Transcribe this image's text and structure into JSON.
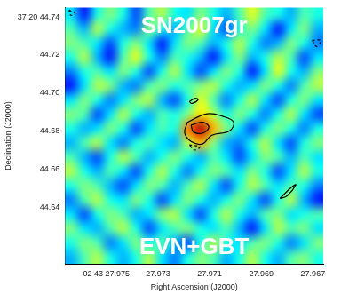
{
  "chart_data": {
    "type": "heatmap",
    "annotations": [
      "SN2007gr",
      "EVN+GBT"
    ],
    "x_label": "Right Ascension (J2000)",
    "y_label": "Declination (J2000)",
    "xlim": [
      27.9766,
      27.9666
    ],
    "xticks": [
      {
        "value": 27.975,
        "label": "02 43 27.975"
      },
      27.973,
      27.971,
      27.969,
      27.967
    ],
    "ylim": [
      44.61,
      44.745
    ],
    "yticks": [
      {
        "value": 44.74,
        "label": "37 20 44.74"
      },
      44.72,
      {
        "value": 44.7,
        "label": "44.70"
      },
      44.68,
      44.66,
      44.64
    ],
    "grid": false,
    "zlim": [
      0,
      1
    ],
    "cells": [
      [
        0.35,
        0.15,
        0.4,
        0.5,
        0.4,
        0.2,
        0.45,
        0.55,
        0.4,
        0.35,
        0.5,
        0.4,
        0.3,
        0.45,
        0.6,
        0.45,
        0.4,
        0.3,
        0.45,
        0.4
      ],
      [
        0.45,
        0.3,
        0.55,
        0.4,
        0.3,
        0.25,
        0.5,
        0.4,
        0.3,
        0.45,
        0.6,
        0.35,
        0.2,
        0.4,
        0.5,
        0.35,
        0.15,
        0.35,
        0.5,
        0.3
      ],
      [
        0.5,
        0.45,
        0.35,
        0.2,
        0.4,
        0.5,
        0.35,
        0.15,
        0.35,
        0.5,
        0.45,
        0.3,
        0.4,
        0.55,
        0.4,
        0.25,
        0.3,
        0.5,
        0.4,
        0.25
      ],
      [
        0.4,
        0.55,
        0.3,
        0.15,
        0.45,
        0.6,
        0.4,
        0.25,
        0.45,
        0.4,
        0.3,
        0.15,
        0.35,
        0.5,
        0.3,
        0.4,
        0.55,
        0.45,
        0.2,
        0.35
      ],
      [
        0.25,
        0.4,
        0.45,
        0.35,
        0.5,
        0.4,
        0.2,
        0.4,
        0.55,
        0.35,
        0.2,
        0.35,
        0.5,
        0.4,
        0.15,
        0.35,
        0.6,
        0.4,
        0.3,
        0.5
      ],
      [
        0.15,
        0.35,
        0.55,
        0.5,
        0.3,
        0.25,
        0.45,
        0.5,
        0.4,
        0.45,
        0.5,
        0.55,
        0.4,
        0.3,
        0.35,
        0.5,
        0.4,
        0.25,
        0.45,
        0.55
      ],
      [
        0.35,
        0.5,
        0.4,
        0.25,
        0.35,
        0.5,
        0.55,
        0.3,
        0.2,
        0.4,
        0.6,
        0.45,
        0.25,
        0.4,
        0.55,
        0.35,
        0.2,
        0.4,
        0.5,
        0.35
      ],
      [
        0.5,
        0.45,
        0.2,
        0.35,
        0.55,
        0.4,
        0.3,
        0.45,
        0.4,
        0.5,
        0.65,
        0.55,
        0.4,
        0.5,
        0.4,
        0.25,
        0.4,
        0.55,
        0.35,
        0.2
      ],
      [
        0.4,
        0.3,
        0.35,
        0.5,
        0.4,
        0.2,
        0.35,
        0.45,
        0.4,
        0.75,
        0.95,
        0.7,
        0.5,
        0.35,
        0.2,
        0.4,
        0.5,
        0.4,
        0.25,
        0.4
      ],
      [
        0.3,
        0.45,
        0.55,
        0.35,
        0.25,
        0.4,
        0.45,
        0.35,
        0.3,
        0.55,
        0.7,
        0.5,
        0.3,
        0.25,
        0.4,
        0.55,
        0.35,
        0.2,
        0.4,
        0.5
      ],
      [
        0.45,
        0.3,
        0.2,
        0.4,
        0.55,
        0.45,
        0.3,
        0.4,
        0.5,
        0.4,
        0.3,
        0.45,
        0.35,
        0.2,
        0.35,
        0.5,
        0.45,
        0.3,
        0.45,
        0.35
      ],
      [
        0.55,
        0.4,
        0.3,
        0.45,
        0.35,
        0.2,
        0.4,
        0.55,
        0.4,
        0.25,
        0.4,
        0.5,
        0.45,
        0.35,
        0.5,
        0.4,
        0.2,
        0.35,
        0.55,
        0.4
      ],
      [
        0.4,
        0.5,
        0.45,
        0.3,
        0.2,
        0.35,
        0.5,
        0.45,
        0.3,
        0.45,
        0.55,
        0.35,
        0.2,
        0.4,
        0.55,
        0.45,
        0.35,
        0.45,
        0.4,
        0.25
      ],
      [
        0.25,
        0.45,
        0.55,
        0.4,
        0.35,
        0.5,
        0.4,
        0.2,
        0.35,
        0.5,
        0.4,
        0.3,
        0.4,
        0.5,
        0.35,
        0.2,
        0.4,
        0.55,
        0.3,
        0.15
      ],
      [
        0.35,
        0.2,
        0.4,
        0.5,
        0.45,
        0.3,
        0.35,
        0.5,
        0.55,
        0.35,
        0.2,
        0.4,
        0.55,
        0.4,
        0.3,
        0.45,
        0.5,
        0.35,
        0.4,
        0.45
      ],
      [
        0.5,
        0.35,
        0.3,
        0.45,
        0.55,
        0.4,
        0.2,
        0.35,
        0.45,
        0.5,
        0.4,
        0.35,
        0.45,
        0.3,
        0.15,
        0.35,
        0.55,
        0.45,
        0.5,
        0.35
      ],
      [
        0.4,
        0.5,
        0.45,
        0.25,
        0.35,
        0.5,
        0.4,
        0.45,
        0.3,
        0.2,
        0.4,
        0.55,
        0.4,
        0.35,
        0.45,
        0.5,
        0.4,
        0.25,
        0.35,
        0.5
      ],
      [
        0.3,
        0.45,
        0.55,
        0.4,
        0.3,
        0.4,
        0.55,
        0.35,
        0.25,
        0.4,
        0.5,
        0.45,
        0.3,
        0.4,
        0.55,
        0.4,
        0.3,
        0.45,
        0.5,
        0.4
      ]
    ],
    "contours": [
      {
        "color": "#000000",
        "line_style": "solid",
        "x": [
          27.97186,
          27.9711,
          27.97048,
          27.97007,
          27.97024,
          27.97093,
          27.97128,
          27.97172,
          27.97197,
          27.97186
        ],
        "y": [
          44.6846,
          44.6891,
          44.6877,
          44.6846,
          44.68,
          44.6777,
          44.6732,
          44.6745,
          44.6791,
          44.6846
        ]
      },
      {
        "color": "#000000",
        "line_style": "solid",
        "x": [
          27.97172,
          27.97128,
          27.97103,
          27.97124,
          27.97162,
          27.97172
        ],
        "y": [
          44.6832,
          44.6846,
          44.6823,
          44.6791,
          44.6795,
          44.6832
        ]
      },
      {
        "color": "#000000",
        "line_style": "solid",
        "x": [
          27.97179,
          27.97155,
          27.97145,
          27.97169,
          27.97179
        ],
        "y": [
          44.6955,
          44.6973,
          44.6964,
          44.6945,
          44.6955
        ]
      },
      {
        "color": "#000000",
        "line_style": "solid",
        "x": [
          27.96828,
          27.96783,
          27.96766,
          27.968,
          27.96828
        ],
        "y": [
          44.6445,
          44.6505,
          44.6518,
          44.6459,
          44.6445
        ]
      },
      {
        "color": "#000000",
        "line_style": "dashed",
        "x": [
          27.97179,
          27.97138,
          27.97159,
          27.97179
        ],
        "y": [
          44.6727,
          44.6718,
          44.67,
          44.6727
        ]
      },
      {
        "color": "#000000",
        "line_style": "dashed",
        "x": [
          27.97645,
          27.97621,
          27.97638,
          27.97645
        ],
        "y": [
          44.7436,
          44.7418,
          44.7409,
          44.7436
        ]
      },
      {
        "color": "#000000",
        "line_style": "dashed",
        "x": [
          27.96703,
          27.96669,
          27.96686,
          27.96703
        ],
        "y": [
          44.7277,
          44.7277,
          44.7245,
          44.7277
        ]
      }
    ]
  }
}
